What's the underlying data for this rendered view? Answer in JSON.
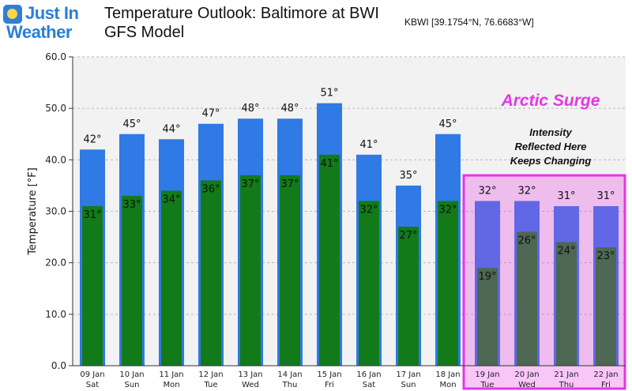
{
  "logo": {
    "line1": "Just In",
    "line2": "Weather"
  },
  "header": {
    "title": "Temperature Outlook: Baltimore at BWI",
    "subtitle": "GFS Model",
    "station": "KBWI [39.1754°N, 76.6683°W]"
  },
  "annotations": {
    "arctic": "Arctic Surge",
    "intensity_lines": [
      "Intensity",
      "Reflected Here",
      "Keeps Changing"
    ]
  },
  "colors": {
    "high": "#2f7ae5",
    "low": "#137a1a",
    "highlight": "#e536e6",
    "plot_bg": "#f2f2f2"
  },
  "chart_data": {
    "type": "bar",
    "title": "",
    "xlabel": "",
    "ylabel": "Temperature [°F]",
    "ylim": [
      0,
      60
    ],
    "yticks": [
      "0.0",
      "10.0",
      "20.0",
      "30.0",
      "40.0",
      "50.0",
      "60.0"
    ],
    "grid": true,
    "categories": [
      [
        "09 Jan",
        "Sat"
      ],
      [
        "10 Jan",
        "Sun"
      ],
      [
        "11 Jan",
        "Mon"
      ],
      [
        "12 Jan",
        "Tue"
      ],
      [
        "13 Jan",
        "Wed"
      ],
      [
        "14 Jan",
        "Thu"
      ],
      [
        "15 Jan",
        "Fri"
      ],
      [
        "16 Jan",
        "Sat"
      ],
      [
        "17 Jan",
        "Sun"
      ],
      [
        "18 Jan",
        "Mon"
      ],
      [
        "19 Jan",
        "Tue"
      ],
      [
        "20 Jan",
        "Wed"
      ],
      [
        "21 Jan",
        "Thu"
      ],
      [
        "22 Jan",
        "Fri"
      ]
    ],
    "series": [
      {
        "values": [
          42,
          45,
          44,
          47,
          48,
          48,
          51,
          41,
          35,
          45,
          32,
          32,
          31,
          31
        ],
        "labels": [
          "42°",
          "45°",
          "44°",
          "47°",
          "48°",
          "48°",
          "51°",
          "41°",
          "35°",
          "45°",
          "32°",
          "32°",
          "31°",
          "31°"
        ]
      },
      {
        "values": [
          31,
          33,
          34,
          36,
          37,
          37,
          41,
          32,
          27,
          32,
          19,
          26,
          24,
          23
        ],
        "labels": [
          "31°",
          "33°",
          "34°",
          "36°",
          "37°",
          "37°",
          "41°",
          "32°",
          "27°",
          "32°",
          "19°",
          "26°",
          "24°",
          "23°"
        ]
      }
    ],
    "highlight_range": [
      10,
      13
    ]
  }
}
